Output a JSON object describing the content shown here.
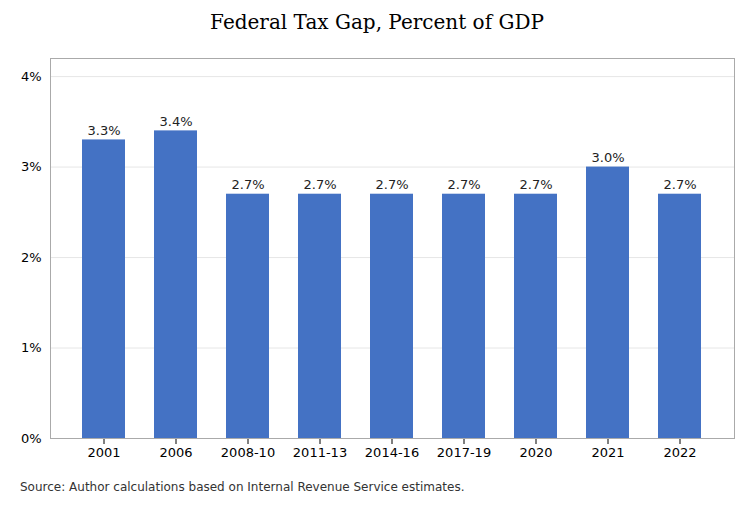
{
  "chart_data": {
    "type": "bar",
    "title": "Federal Tax Gap, Percent of GDP",
    "categories": [
      "2001",
      "2006",
      "2008-10",
      "2011-13",
      "2014-16",
      "2017-19",
      "2020",
      "2021",
      "2022"
    ],
    "values": [
      3.3,
      3.4,
      2.7,
      2.7,
      2.7,
      2.7,
      2.7,
      3.0,
      2.7
    ],
    "value_labels": [
      "3.3%",
      "3.4%",
      "2.7%",
      "2.7%",
      "2.7%",
      "2.7%",
      "2.7%",
      "3.0%",
      "2.7%"
    ],
    "data_labels": true,
    "color": "#4472C4",
    "ylim": [
      0,
      4.2
    ],
    "yticks": [
      {
        "value": 0,
        "label": "0%"
      },
      {
        "value": 1,
        "label": "1%"
      },
      {
        "value": 2,
        "label": "2%"
      },
      {
        "value": 3,
        "label": "3%"
      },
      {
        "value": 4,
        "label": "4%"
      }
    ],
    "grid": true,
    "source": "Source: Author calculations based on Internal Revenue Service estimates."
  }
}
